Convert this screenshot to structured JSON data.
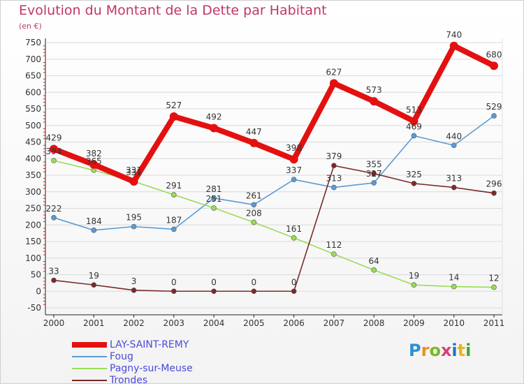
{
  "title": "Evolution du Montant de la Dette par Habitant",
  "subtitle": "(en €)",
  "logo": {
    "text": "Proxiti",
    "colors": [
      "#2a8fd6",
      "#e8931d",
      "#79b829",
      "#d93e7c",
      "#1d74c2",
      "#e8b51d",
      "#3ea833"
    ]
  },
  "chart_data": {
    "type": "line",
    "x": [
      "2000",
      "2001",
      "2002",
      "2003",
      "2004",
      "2005",
      "2006",
      "2007",
      "2008",
      "2009",
      "2010",
      "2011"
    ],
    "y_ticks": [
      "-50",
      "0",
      "50",
      "100",
      "150",
      "200",
      "250",
      "300",
      "350",
      "400",
      "450",
      "500",
      "550",
      "600",
      "650",
      "700",
      "750"
    ],
    "ylim": [
      -50,
      750
    ],
    "grid": "horizontal",
    "legend_position": "bottom-left",
    "series": [
      {
        "name": "LAY-SAINT-REMY",
        "color": "#e41010",
        "width": 8,
        "marker": 6,
        "values": [
          429,
          382,
          331,
          527,
          492,
          447,
          398,
          627,
          573,
          513,
          740,
          680
        ],
        "labels": [
          "429",
          "382",
          "331",
          "527",
          "492",
          "447",
          "398",
          "627",
          "573",
          "513",
          "740",
          "680"
        ]
      },
      {
        "name": "Foug",
        "color": "#5b9bd5",
        "width": 1.6,
        "marker": 3.5,
        "values": [
          222,
          184,
          195,
          187,
          281,
          261,
          337,
          313,
          327,
          469,
          440,
          529
        ],
        "labels": [
          "222",
          "184",
          "195",
          "187",
          "281",
          "261",
          "337",
          "313",
          "327",
          "469",
          "440",
          "529"
        ]
      },
      {
        "name": "Pagny-sur-Meuse",
        "color": "#99dd55",
        "width": 1.6,
        "marker": 3.5,
        "values": [
          394,
          365,
          331,
          291,
          251,
          208,
          161,
          112,
          64,
          19,
          14,
          12
        ],
        "labels": [
          "394",
          "365",
          "331",
          "291",
          "251",
          "208",
          "161",
          "112",
          "64",
          "19",
          "14",
          "12"
        ]
      },
      {
        "name": "Trondes",
        "color": "#7a2a2a",
        "width": 1.6,
        "marker": 3.5,
        "values": [
          33,
          19,
          3,
          0,
          0,
          0,
          0,
          379,
          355,
          325,
          313,
          296
        ],
        "labels": [
          "33",
          "19",
          "3",
          "0",
          "0",
          "0",
          "0",
          "379",
          "355",
          "325",
          "313",
          "296"
        ]
      }
    ]
  }
}
